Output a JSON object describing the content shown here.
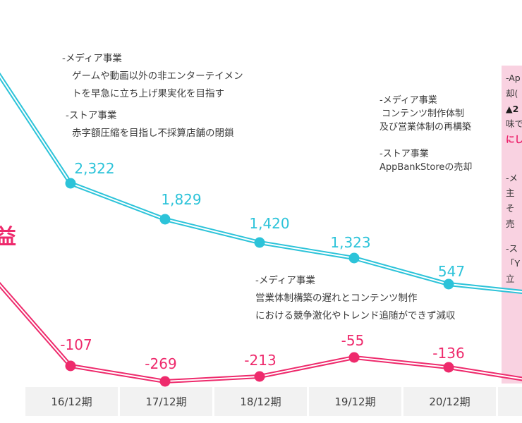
{
  "chart_data": {
    "type": "line",
    "categories": [
      "16/12期",
      "17/12期",
      "18/12期",
      "19/12期",
      "20/12期"
    ],
    "series": [
      {
        "id": "teal-series",
        "color": "#2cc3d9",
        "values": [
          2322,
          1829,
          1420,
          1323,
          547
        ],
        "labels": [
          "2,322",
          "1,829",
          "1,420",
          "1,323",
          "547"
        ]
      },
      {
        "id": "pink-series",
        "color": "#ee2a6c",
        "values": [
          -107,
          -269,
          -213,
          -55,
          -136
        ],
        "labels": [
          "-107",
          "-269",
          "-213",
          "-55",
          "-136"
        ]
      }
    ],
    "grid": false,
    "legend_position": "left-edge-partial",
    "notes": "chart is cropped on left and right edges; lines continue off-canvas"
  },
  "series_label_partial": "益",
  "annotations": {
    "top_left": {
      "lines": [
        "-メディア事業",
        "ゲームや動画以外の非エンターテイメン",
        "トを早急に立ち上げ果実化を目指す",
        "-ストア事業",
        "赤字額圧縮を目指し不採算店舗の閉鎖"
      ]
    },
    "mid_right": {
      "lines": [
        "-メディア事業",
        "コンテンツ制作体制",
        "及び営業体制の再構築",
        "-ストア事業",
        "AppBankStoreの売却"
      ]
    },
    "bottom_center": {
      "lines": [
        "-メディア事業",
        "営業体制構築の遅れとコンテンツ制作",
        "における競争激化やトレンド追随ができず減収"
      ]
    }
  },
  "side_panel": {
    "lines": [
      {
        "text": "-Ap",
        "style": "normal"
      },
      {
        "text": "却(",
        "style": "normal"
      },
      {
        "text": "▲2",
        "style": "bold"
      },
      {
        "text": "味で",
        "style": "normal"
      },
      {
        "text": "にし",
        "style": "accent"
      },
      {
        "text": "-メ",
        "style": "normal"
      },
      {
        "text": "主",
        "style": "normal"
      },
      {
        "text": "そ",
        "style": "normal"
      },
      {
        "text": "売",
        "style": "normal"
      },
      {
        "text": "-ス",
        "style": "normal"
      },
      {
        "text": "「Y",
        "style": "normal"
      },
      {
        "text": "立",
        "style": "normal"
      }
    ]
  },
  "colors": {
    "teal": "#2cc3d9",
    "pink": "#ee2a6c",
    "panel_bg": "#f9d2e1",
    "panel_accent": "#ec1c67",
    "axis_bg": "#f2f2f2"
  }
}
